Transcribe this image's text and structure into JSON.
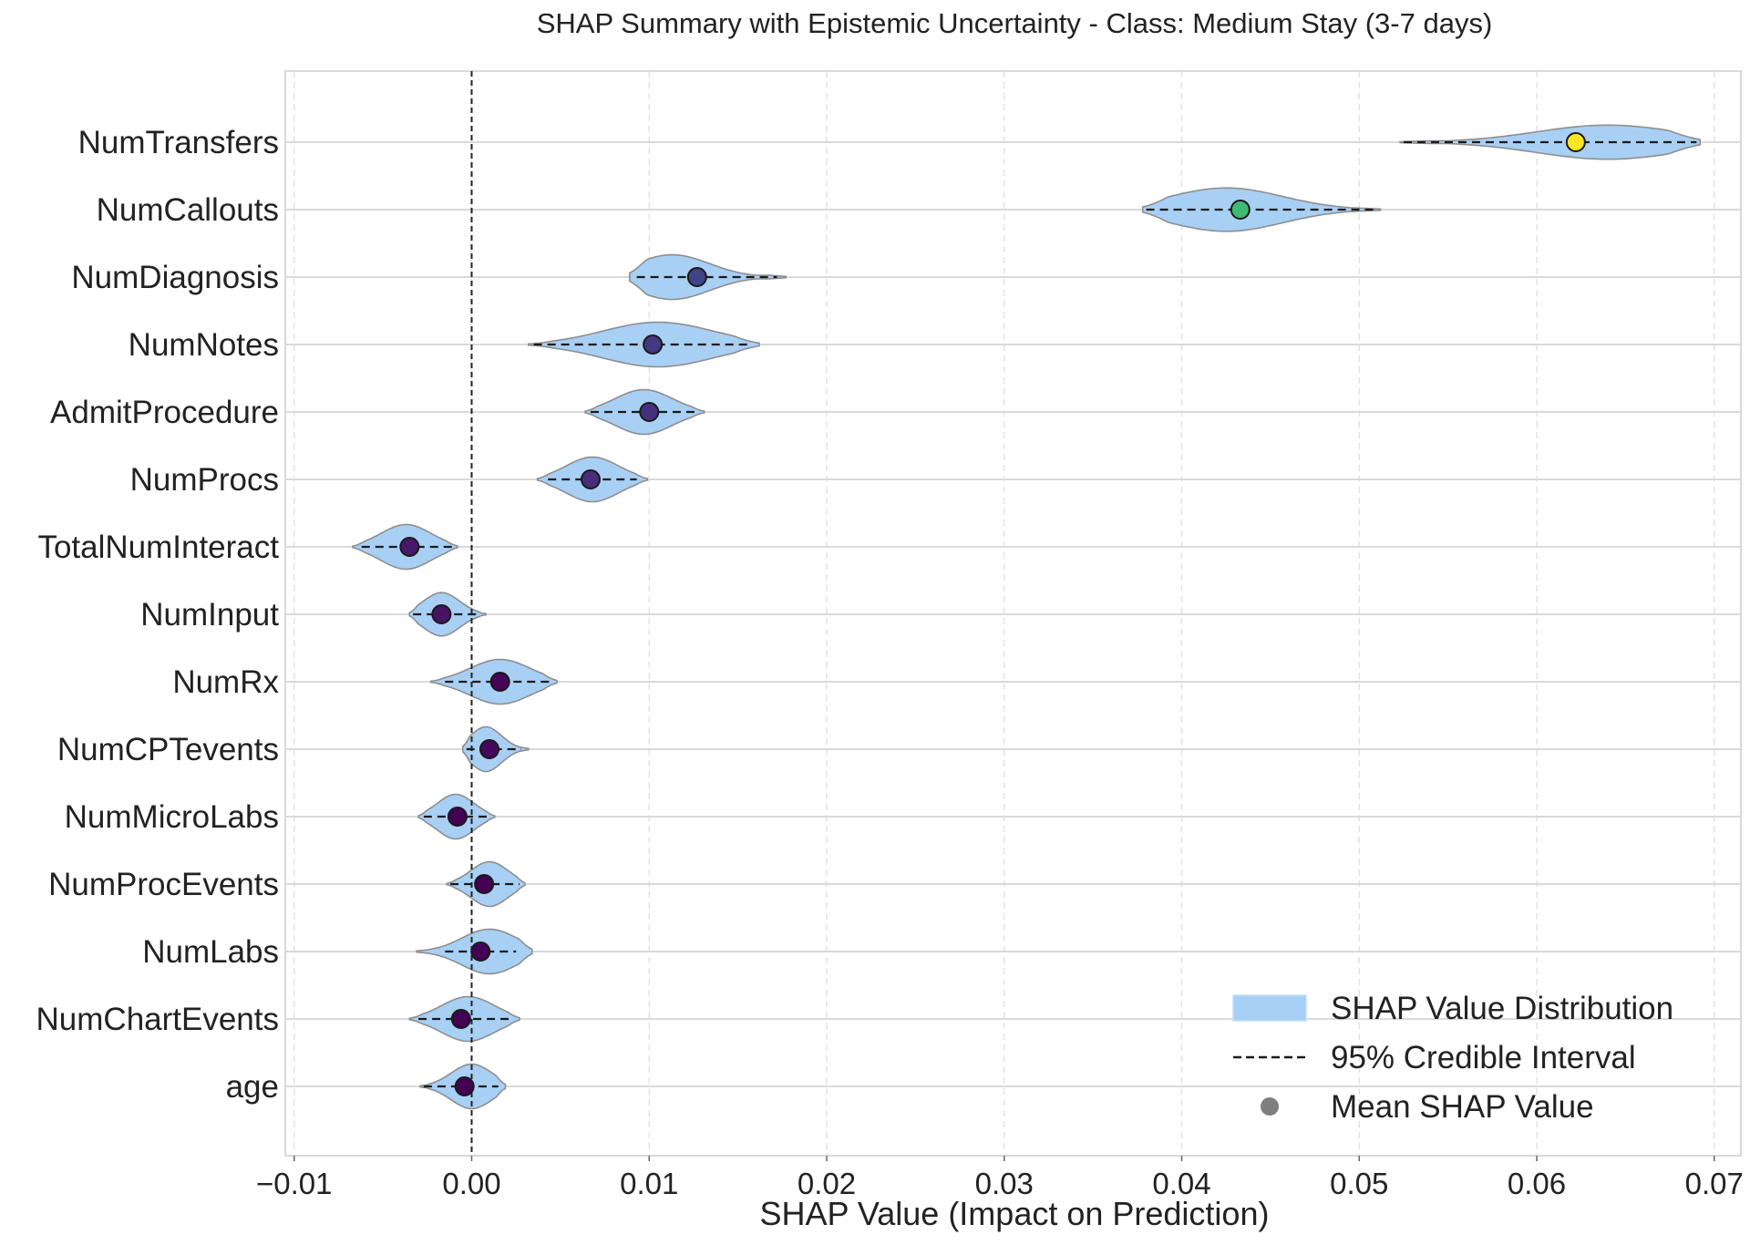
{
  "chart_data": {
    "type": "violin",
    "title": "SHAP Summary with Epistemic Uncertainty - Class: Medium Stay (3-7 days)",
    "xlabel": "SHAP Value (Impact on Prediction)",
    "ylabel": "",
    "xlim": [
      -0.0105,
      0.0715
    ],
    "xticks": [
      -0.01,
      0.0,
      0.01,
      0.02,
      0.03,
      0.04,
      0.05,
      0.06,
      0.07
    ],
    "xtick_labels": [
      "−0.01",
      "0.00",
      "0.01",
      "0.02",
      "0.03",
      "0.04",
      "0.05",
      "0.06",
      "0.07"
    ],
    "grid": true,
    "reference_line_x": 0.0,
    "legend_position": "bottom-right",
    "legend": [
      {
        "label": "SHAP Value Distribution",
        "kind": "patch"
      },
      {
        "label": "95% Credible Interval",
        "kind": "dashed-line"
      },
      {
        "label": "Mean SHAP Value",
        "kind": "marker"
      }
    ],
    "colors": {
      "violin_fill": "#a8d0f5",
      "violin_edge": "#8e8e8e",
      "ci_line": "#1a1a1a",
      "zero_line": "#222222",
      "grid": "#d9d9d9",
      "legend_marker": "#7f7f7f"
    },
    "features": [
      {
        "name": "NumTransfers",
        "mean": 0.0622,
        "ci": [
          0.0525,
          0.069
        ],
        "min": 0.0523,
        "max": 0.0692,
        "mode": 0.064,
        "width": 0.55,
        "marker_color": "#fde725"
      },
      {
        "name": "NumCallouts",
        "mean": 0.0433,
        "ci": [
          0.038,
          0.051
        ],
        "min": 0.0378,
        "max": 0.0512,
        "mode": 0.0425,
        "width": 0.7,
        "marker_color": "#3dbc74"
      },
      {
        "name": "NumDiagnosis",
        "mean": 0.0127,
        "ci": [
          0.0093,
          0.0172
        ],
        "min": 0.0089,
        "max": 0.0177,
        "mode": 0.0113,
        "width": 0.72,
        "marker_color": "#414487"
      },
      {
        "name": "NumNotes",
        "mean": 0.0102,
        "ci": [
          0.0035,
          0.0158
        ],
        "min": 0.0032,
        "max": 0.0162,
        "mode": 0.0105,
        "width": 0.72,
        "marker_color": "#433982"
      },
      {
        "name": "AdmitProcedure",
        "mean": 0.01,
        "ci": [
          0.0067,
          0.0128
        ],
        "min": 0.0064,
        "max": 0.0131,
        "mode": 0.0097,
        "width": 0.72,
        "marker_color": "#46307e"
      },
      {
        "name": "NumProcs",
        "mean": 0.0067,
        "ci": [
          0.0043,
          0.0093
        ],
        "min": 0.0037,
        "max": 0.0099,
        "mode": 0.0068,
        "width": 0.72,
        "marker_color": "#472d7b"
      },
      {
        "name": "TotalNumInteract",
        "mean": -0.0035,
        "ci": [
          -0.0062,
          -0.0011
        ],
        "min": -0.0067,
        "max": -0.0008,
        "mode": -0.0037,
        "width": 0.72,
        "marker_color": "#48186a"
      },
      {
        "name": "NumInput",
        "mean": -0.0017,
        "ci": [
          -0.0033,
          0.0004
        ],
        "min": -0.0035,
        "max": 0.0008,
        "mode": -0.0017,
        "width": 0.7,
        "marker_color": "#471365"
      },
      {
        "name": "NumRx",
        "mean": 0.0016,
        "ci": [
          -0.0015,
          0.0045
        ],
        "min": -0.0023,
        "max": 0.0048,
        "mode": 0.0016,
        "width": 0.72,
        "marker_color": "#450457"
      },
      {
        "name": "NumCPTevents",
        "mean": 0.001,
        "ci": [
          -0.0003,
          0.0028
        ],
        "min": -0.0005,
        "max": 0.0032,
        "mode": 0.0008,
        "width": 0.72,
        "marker_color": "#46085c"
      },
      {
        "name": "NumMicroLabs",
        "mean": -0.0008,
        "ci": [
          -0.0027,
          0.0011
        ],
        "min": -0.003,
        "max": 0.0013,
        "mode": -0.0009,
        "width": 0.72,
        "marker_color": "#440154"
      },
      {
        "name": "NumProcEvents",
        "mean": 0.0007,
        "ci": [
          -0.0012,
          0.0027
        ],
        "min": -0.0014,
        "max": 0.003,
        "mode": 0.001,
        "width": 0.72,
        "marker_color": "#440154"
      },
      {
        "name": "NumLabs",
        "mean": 0.0005,
        "ci": [
          -0.0015,
          0.0025
        ],
        "min": -0.0031,
        "max": 0.0034,
        "mode": 0.001,
        "width": 0.72,
        "marker_color": "#440154"
      },
      {
        "name": "NumChartEvents",
        "mean": -0.0006,
        "ci": [
          -0.003,
          0.0022
        ],
        "min": -0.0035,
        "max": 0.0027,
        "mode": -0.0002,
        "width": 0.72,
        "marker_color": "#440154"
      },
      {
        "name": "age",
        "mean": -0.0004,
        "ci": [
          -0.0027,
          0.0015
        ],
        "min": -0.0029,
        "max": 0.0019,
        "mode": 0.0,
        "width": 0.72,
        "marker_color": "#440154"
      }
    ]
  }
}
